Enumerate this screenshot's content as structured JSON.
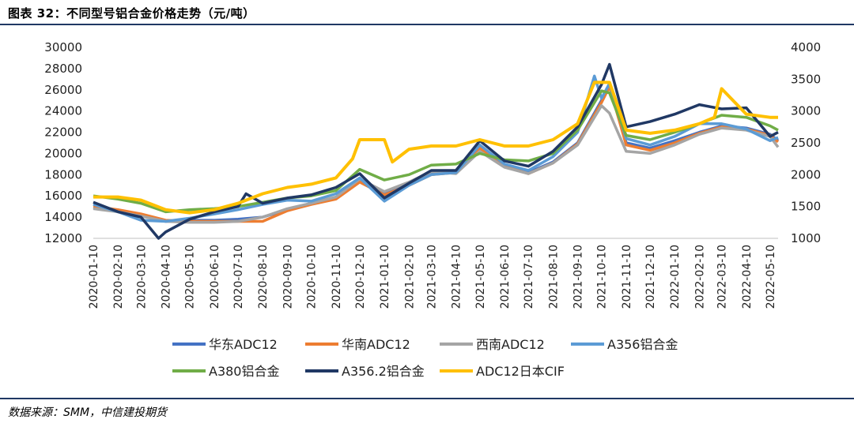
{
  "title": "图表 32：不同型号铝合金价格走势（元/吨）",
  "source": "数据来源：SMM，中信建投期货",
  "chart_data": {
    "type": "line",
    "y_left": {
      "min": 12000,
      "max": 30000,
      "ticks": [
        "30000",
        "28000",
        "26000",
        "24000",
        "22000",
        "20000",
        "18000",
        "16000",
        "14000",
        "12000"
      ]
    },
    "y_right": {
      "min": 1000,
      "max": 4000,
      "ticks": [
        "4000",
        "3500",
        "3000",
        "2500",
        "2000",
        "1500",
        "1000"
      ]
    },
    "x_range": [
      "2020-01-10",
      "2022-05-20"
    ],
    "x_ticks": [
      "2020-01-10",
      "2020-02-10",
      "2020-03-10",
      "2020-04-10",
      "2020-05-10",
      "2020-06-10",
      "2020-07-10",
      "2020-08-10",
      "2020-09-10",
      "2020-10-10",
      "2020-11-10",
      "2020-12-10",
      "2021-01-10",
      "2021-02-10",
      "2021-03-10",
      "2021-04-10",
      "2021-05-10",
      "2021-06-10",
      "2021-07-10",
      "2021-08-10",
      "2021-09-10",
      "2021-10-10",
      "2021-11-10",
      "2021-12-10",
      "2022-01-10",
      "2022-02-10",
      "2022-03-10",
      "2022-04-10",
      "2022-05-10"
    ],
    "grid": false,
    "legend_position": "bottom",
    "series": [
      {
        "name": "华东ADC12",
        "color": "#4472c4",
        "axis": "left",
        "x": [
          "2020-01-10",
          "2020-02-10",
          "2020-03-10",
          "2020-04-10",
          "2020-05-10",
          "2020-06-10",
          "2020-07-10",
          "2020-08-10",
          "2020-09-10",
          "2020-10-10",
          "2020-11-10",
          "2020-12-10",
          "2021-01-10",
          "2021-02-10",
          "2021-03-10",
          "2021-04-10",
          "2021-05-10",
          "2021-06-10",
          "2021-07-10",
          "2021-08-10",
          "2021-09-10",
          "2021-10-10",
          "2021-10-20",
          "2021-11-10",
          "2021-12-10",
          "2022-01-10",
          "2022-02-10",
          "2022-03-10",
          "2022-04-10",
          "2022-05-10",
          "2022-05-20"
        ],
        "y": [
          14900,
          14600,
          14200,
          13600,
          13700,
          13700,
          13800,
          14000,
          14700,
          15300,
          15800,
          17500,
          16200,
          17200,
          18200,
          18300,
          20600,
          18900,
          18200,
          19200,
          21000,
          25000,
          26500,
          21000,
          20500,
          21200,
          22000,
          22600,
          22400,
          21800,
          21200
        ]
      },
      {
        "name": "华南ADC12",
        "color": "#ed7d31",
        "axis": "left",
        "x": [
          "2020-01-10",
          "2020-02-10",
          "2020-03-10",
          "2020-04-10",
          "2020-05-10",
          "2020-06-10",
          "2020-07-10",
          "2020-08-10",
          "2020-09-10",
          "2020-10-10",
          "2020-11-10",
          "2020-12-10",
          "2021-01-10",
          "2021-02-10",
          "2021-03-10",
          "2021-04-10",
          "2021-05-10",
          "2021-06-10",
          "2021-07-10",
          "2021-08-10",
          "2021-09-10",
          "2021-10-10",
          "2021-10-20",
          "2021-11-10",
          "2021-12-10",
          "2022-01-10",
          "2022-02-10",
          "2022-03-10",
          "2022-04-10",
          "2022-05-10",
          "2022-05-20"
        ],
        "y": [
          15000,
          14700,
          14300,
          13700,
          13600,
          13600,
          13600,
          13600,
          14600,
          15200,
          15700,
          17300,
          16100,
          17000,
          18000,
          18200,
          20500,
          18800,
          18100,
          19100,
          20900,
          24800,
          26300,
          20800,
          20300,
          21000,
          21900,
          22500,
          22300,
          21700,
          21100
        ]
      },
      {
        "name": "西南ADC12",
        "color": "#a5a5a5",
        "axis": "left",
        "x": [
          "2020-01-10",
          "2020-02-10",
          "2020-03-10",
          "2020-04-10",
          "2020-05-10",
          "2020-06-10",
          "2020-07-10",
          "2020-08-10",
          "2020-09-10",
          "2020-10-10",
          "2020-11-10",
          "2020-12-10",
          "2021-01-10",
          "2021-02-10",
          "2021-03-10",
          "2021-04-10",
          "2021-05-10",
          "2021-06-10",
          "2021-07-10",
          "2021-08-10",
          "2021-09-10",
          "2021-10-10",
          "2021-10-20",
          "2021-11-10",
          "2021-12-10",
          "2022-01-10",
          "2022-02-10",
          "2022-03-10",
          "2022-04-10",
          "2022-05-10",
          "2022-05-20"
        ],
        "y": [
          14800,
          14500,
          14100,
          13600,
          13500,
          13500,
          13600,
          14000,
          14800,
          15300,
          15900,
          17600,
          16400,
          17300,
          18300,
          18100,
          20200,
          18700,
          18100,
          19100,
          20800,
          24500,
          23800,
          20200,
          20000,
          20800,
          21800,
          22400,
          22200,
          21600,
          20600
        ]
      },
      {
        "name": "A356铝合金",
        "color": "#5b9bd5",
        "axis": "left",
        "x": [
          "2020-01-10",
          "2020-02-10",
          "2020-03-10",
          "2020-04-10",
          "2020-05-10",
          "2020-06-10",
          "2020-07-10",
          "2020-08-10",
          "2020-09-10",
          "2020-10-10",
          "2020-11-10",
          "2020-12-10",
          "2021-01-10",
          "2021-02-10",
          "2021-03-10",
          "2021-04-10",
          "2021-05-10",
          "2021-06-10",
          "2021-07-10",
          "2021-08-10",
          "2021-09-10",
          "2021-10-01",
          "2021-10-10",
          "2021-10-20",
          "2021-11-10",
          "2021-12-10",
          "2022-01-10",
          "2022-02-10",
          "2022-03-10",
          "2022-04-10",
          "2022-05-10",
          "2022-05-20"
        ],
        "y": [
          15200,
          14500,
          13700,
          13600,
          13900,
          14300,
          14700,
          15200,
          15600,
          15500,
          16200,
          17700,
          15500,
          17000,
          18000,
          18200,
          20800,
          19000,
          18400,
          19700,
          22000,
          27300,
          25200,
          26600,
          21400,
          20800,
          21600,
          22800,
          22800,
          22300,
          21200,
          21500
        ]
      },
      {
        "name": "A380铝合金",
        "color": "#70ad47",
        "axis": "left",
        "x": [
          "2020-01-10",
          "2020-02-10",
          "2020-03-10",
          "2020-04-10",
          "2020-05-10",
          "2020-06-10",
          "2020-07-10",
          "2020-08-10",
          "2020-09-10",
          "2020-10-10",
          "2020-11-10",
          "2020-12-10",
          "2021-01-10",
          "2021-02-10",
          "2021-03-10",
          "2021-04-10",
          "2021-05-10",
          "2021-06-10",
          "2021-07-10",
          "2021-08-10",
          "2021-09-10",
          "2021-10-10",
          "2021-10-20",
          "2021-11-10",
          "2021-12-10",
          "2022-01-10",
          "2022-02-10",
          "2022-03-10",
          "2022-04-10",
          "2022-05-10",
          "2022-05-20"
        ],
        "y": [
          16000,
          15700,
          15300,
          14500,
          14700,
          14800,
          15000,
          15400,
          15800,
          16000,
          16500,
          18500,
          17500,
          18000,
          18900,
          19000,
          20000,
          19400,
          19300,
          20000,
          22200,
          25900,
          25700,
          21700,
          21300,
          22000,
          22800,
          23600,
          23400,
          22600,
          22200
        ]
      },
      {
        "name": "A356.2铝合金",
        "color": "#203864",
        "axis": "left",
        "x": [
          "2020-01-10",
          "2020-02-10",
          "2020-03-10",
          "2020-04-01",
          "2020-04-10",
          "2020-05-10",
          "2020-06-10",
          "2020-07-10",
          "2020-07-20",
          "2020-08-10",
          "2020-09-10",
          "2020-10-10",
          "2020-11-10",
          "2020-12-10",
          "2021-01-10",
          "2021-02-10",
          "2021-03-10",
          "2021-04-10",
          "2021-05-10",
          "2021-06-10",
          "2021-07-10",
          "2021-08-10",
          "2021-09-10",
          "2021-10-10",
          "2021-10-20",
          "2021-11-10",
          "2021-12-10",
          "2022-01-10",
          "2022-02-10",
          "2022-03-10",
          "2022-04-10",
          "2022-05-10",
          "2022-05-20"
        ],
        "y": [
          15400,
          14500,
          14000,
          12000,
          12600,
          13800,
          14500,
          15000,
          16200,
          15300,
          15800,
          16100,
          16800,
          18100,
          15800,
          17200,
          18400,
          18400,
          21200,
          19300,
          18800,
          20200,
          22500,
          26500,
          28400,
          22500,
          23000,
          23700,
          24600,
          24200,
          24300,
          21600,
          22000
        ]
      },
      {
        "name": "ADC12日本CIF",
        "color": "#ffc000",
        "axis": "right",
        "x": [
          "2020-01-10",
          "2020-02-10",
          "2020-03-10",
          "2020-04-10",
          "2020-05-10",
          "2020-06-10",
          "2020-07-10",
          "2020-08-10",
          "2020-09-10",
          "2020-10-10",
          "2020-11-10",
          "2020-12-01",
          "2020-12-10",
          "2021-01-10",
          "2021-01-20",
          "2021-02-10",
          "2021-03-10",
          "2021-04-10",
          "2021-05-10",
          "2021-06-10",
          "2021-07-10",
          "2021-08-10",
          "2021-09-10",
          "2021-10-01",
          "2021-10-20",
          "2021-11-10",
          "2021-12-10",
          "2022-01-10",
          "2022-02-10",
          "2022-03-01",
          "2022-03-10",
          "2022-04-10",
          "2022-05-10",
          "2022-05-20"
        ],
        "y": [
          1650,
          1650,
          1600,
          1450,
          1400,
          1450,
          1550,
          1700,
          1800,
          1850,
          1950,
          2250,
          2550,
          2550,
          2200,
          2400,
          2450,
          2450,
          2550,
          2450,
          2450,
          2550,
          2800,
          3450,
          3450,
          2700,
          2650,
          2700,
          2800,
          2900,
          3350,
          2950,
          2900,
          2900
        ]
      }
    ]
  }
}
